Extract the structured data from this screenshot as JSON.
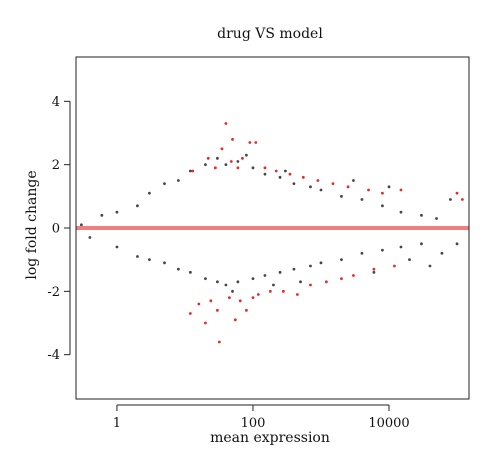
{
  "chart_data": {
    "type": "scatter",
    "title": "drug VS model",
    "xlabel": "mean expression",
    "ylabel": "log fold change",
    "x_scale": "log10",
    "xlim": [
      0.25,
      150000
    ],
    "ylim": [
      -5.4,
      5.4
    ],
    "x_ticks": [
      1,
      100,
      10000
    ],
    "x_tick_labels": [
      "1",
      "100",
      "10000"
    ],
    "y_ticks": [
      -4,
      -2,
      0,
      2,
      4
    ],
    "y_tick_labels": [
      "-4",
      "-2",
      "0",
      "2",
      "4"
    ],
    "reference_line": {
      "y": 0,
      "color": "#f08080"
    },
    "grid": false,
    "legend": "none",
    "colors": {
      "nonsignificant": "#4a4444",
      "significant": "#e8282a"
    },
    "series": [
      {
        "points": [
          [
            0.3,
            0.1
          ],
          [
            0.4,
            -0.3
          ],
          [
            0.6,
            0.4
          ],
          [
            1,
            0.5
          ],
          [
            1,
            -0.6
          ],
          [
            2,
            0.7
          ],
          [
            2,
            -0.9
          ],
          [
            3,
            1.1
          ],
          [
            3,
            -1.0
          ],
          [
            5,
            1.4
          ],
          [
            5,
            -1.1
          ],
          [
            8,
            1.5
          ],
          [
            8,
            -1.3
          ],
          [
            12,
            1.8
          ],
          [
            12,
            -1.4
          ],
          [
            20,
            2.0
          ],
          [
            20,
            -1.6
          ],
          [
            30,
            2.2
          ],
          [
            30,
            -1.7
          ],
          [
            40,
            2.0
          ],
          [
            40,
            -1.8
          ],
          [
            60,
            2.1
          ],
          [
            60,
            -1.7
          ],
          [
            100,
            1.9
          ],
          [
            100,
            -1.6
          ],
          [
            150,
            1.7
          ],
          [
            150,
            -1.5
          ],
          [
            250,
            1.6
          ],
          [
            250,
            -1.4
          ],
          [
            400,
            1.4
          ],
          [
            400,
            -1.3
          ],
          [
            700,
            1.3
          ],
          [
            700,
            -1.2
          ],
          [
            1000,
            1.2
          ],
          [
            1000,
            -1.1
          ],
          [
            2000,
            1.0
          ],
          [
            2000,
            -1.0
          ],
          [
            4000,
            0.9
          ],
          [
            4000,
            -0.8
          ],
          [
            8000,
            0.7
          ],
          [
            8000,
            -0.7
          ],
          [
            15000,
            0.5
          ],
          [
            15000,
            -0.6
          ],
          [
            30000,
            0.4
          ],
          [
            30000,
            -0.5
          ],
          [
            50000,
            0.3
          ],
          [
            60000,
            -0.8
          ],
          [
            80000,
            0.9
          ],
          [
            100000,
            -0.5
          ],
          [
            20000,
            -1.0
          ],
          [
            40000,
            -1.2
          ],
          [
            10000,
            1.3
          ],
          [
            6000,
            -1.4
          ],
          [
            3000,
            1.5
          ],
          [
            500,
            -1.7
          ],
          [
            300,
            1.8
          ],
          [
            200,
            -1.8
          ],
          [
            80,
            2.3
          ],
          [
            50,
            -2.0
          ]
        ]
      },
      {
        "points": [
          [
            12,
            -2.7
          ],
          [
            13,
            1.8
          ],
          [
            16,
            -2.4
          ],
          [
            20,
            -3.0
          ],
          [
            22,
            2.2
          ],
          [
            24,
            -2.3
          ],
          [
            28,
            1.9
          ],
          [
            30,
            -2.6
          ],
          [
            32,
            -3.6
          ],
          [
            35,
            2.5
          ],
          [
            40,
            3.3
          ],
          [
            45,
            -2.2
          ],
          [
            48,
            2.1
          ],
          [
            50,
            2.8
          ],
          [
            55,
            -2.9
          ],
          [
            60,
            1.9
          ],
          [
            65,
            -2.3
          ],
          [
            70,
            2.2
          ],
          [
            80,
            -2.6
          ],
          [
            90,
            2.7
          ],
          [
            100,
            -2.2
          ],
          [
            110,
            2.7
          ],
          [
            120,
            -2.1
          ],
          [
            150,
            1.9
          ],
          [
            180,
            -2.0
          ],
          [
            220,
            1.8
          ],
          [
            280,
            -2.0
          ],
          [
            350,
            1.7
          ],
          [
            450,
            -2.1
          ],
          [
            550,
            1.6
          ],
          [
            700,
            -1.8
          ],
          [
            900,
            1.5
          ],
          [
            1200,
            -1.7
          ],
          [
            1500,
            1.4
          ],
          [
            2000,
            -1.6
          ],
          [
            2500,
            1.3
          ],
          [
            3000,
            -1.5
          ],
          [
            5000,
            1.2
          ],
          [
            6000,
            -1.3
          ],
          [
            8000,
            1.1
          ],
          [
            12000,
            -1.2
          ],
          [
            15000,
            1.2
          ],
          [
            100000,
            1.1
          ],
          [
            120000,
            0.9
          ]
        ]
      }
    ]
  }
}
